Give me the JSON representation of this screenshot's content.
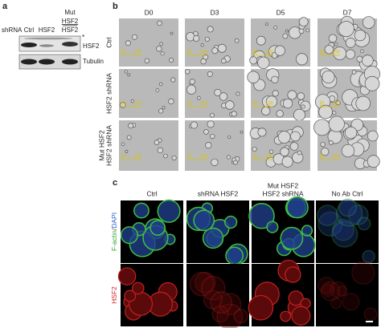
{
  "panel_a": {
    "label": "a",
    "lane_header": "shRNA",
    "lanes": [
      "Ctrl",
      "HSF2"
    ],
    "mut_lane": [
      "Mut",
      "HSF2",
      "HSF2"
    ],
    "asterisk": "*",
    "blots": [
      "HSF2",
      "Tubulin"
    ]
  },
  "panel_b": {
    "label": "b",
    "columns": [
      "D0",
      "D3",
      "D5",
      "D7"
    ],
    "rows": [
      [
        "Ctrl"
      ],
      [
        "HSF2 shRNA"
      ],
      [
        "Mut HSF2",
        "HSF2 shRNA"
      ]
    ],
    "scale_bar": {
      "start": "0",
      "end": "100"
    }
  },
  "panel_c": {
    "label": "c",
    "columns": [
      [
        "Ctrl"
      ],
      [
        "shRNA HSF2"
      ],
      [
        "Mut HSF2",
        "HSF2 shRNA"
      ],
      [
        "No Ab Ctrl"
      ]
    ],
    "rows": [
      [
        "F-actin",
        "/",
        "DAPI"
      ],
      [
        "HSF2"
      ]
    ]
  }
}
